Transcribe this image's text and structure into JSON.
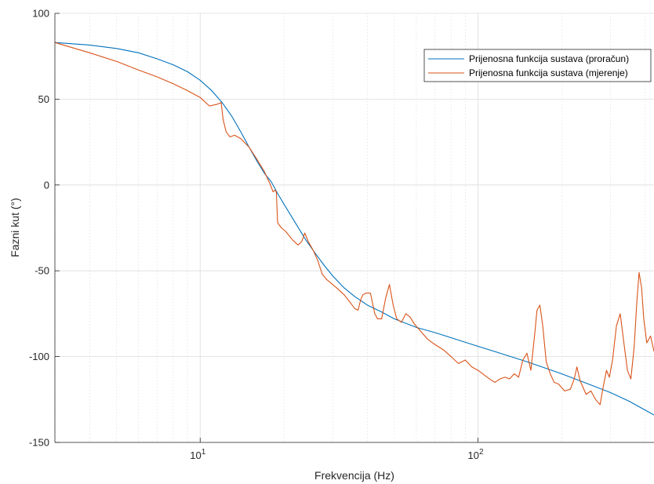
{
  "chart_data": {
    "type": "line",
    "title": "",
    "xlabel": "Frekvencija (Hz)",
    "ylabel": "Fazni kut (°)",
    "x_scale": "log",
    "xlim": [
      3,
      430
    ],
    "ylim": [
      -150,
      100
    ],
    "grid": true,
    "legend_position": "top-right",
    "xticks": [
      {
        "value": 10,
        "base": "10",
        "exp": "1"
      },
      {
        "value": 100,
        "base": "10",
        "exp": "2"
      }
    ],
    "yticks": [
      {
        "value": -150,
        "label": "-150"
      },
      {
        "value": -100,
        "label": "-100"
      },
      {
        "value": -50,
        "label": "-50"
      },
      {
        "value": 0,
        "label": "0"
      },
      {
        "value": 50,
        "label": "50"
      },
      {
        "value": 100,
        "label": "100"
      }
    ],
    "series": [
      {
        "name": "Prijenosna funkcija sustava (proračun)",
        "color": "#0072BD",
        "points": [
          [
            3,
            83
          ],
          [
            4,
            81.5
          ],
          [
            5,
            79.5
          ],
          [
            6,
            77
          ],
          [
            7,
            73.5
          ],
          [
            8,
            70
          ],
          [
            9,
            66
          ],
          [
            10,
            61
          ],
          [
            11,
            55
          ],
          [
            12,
            48
          ],
          [
            13,
            40
          ],
          [
            14,
            31
          ],
          [
            15,
            22
          ],
          [
            16,
            14
          ],
          [
            17,
            7
          ],
          [
            18,
            2
          ],
          [
            19,
            -5
          ],
          [
            20,
            -11
          ],
          [
            22,
            -22
          ],
          [
            24,
            -32
          ],
          [
            26,
            -40
          ],
          [
            28,
            -47
          ],
          [
            30,
            -53
          ],
          [
            33,
            -60
          ],
          [
            36,
            -65
          ],
          [
            40,
            -70
          ],
          [
            45,
            -74
          ],
          [
            50,
            -78
          ],
          [
            60,
            -83
          ],
          [
            70,
            -86
          ],
          [
            80,
            -89
          ],
          [
            100,
            -94
          ],
          [
            120,
            -98
          ],
          [
            150,
            -103
          ],
          [
            200,
            -110
          ],
          [
            250,
            -116
          ],
          [
            300,
            -121
          ],
          [
            350,
            -126
          ],
          [
            430,
            -134
          ]
        ]
      },
      {
        "name": "Prijenosna funkcija sustava (mjerenje)",
        "color": "#D95319",
        "points": [
          [
            3,
            83
          ],
          [
            4,
            77
          ],
          [
            5,
            72
          ],
          [
            6,
            67
          ],
          [
            7,
            63
          ],
          [
            8,
            59
          ],
          [
            9,
            55
          ],
          [
            10,
            51
          ],
          [
            10.8,
            46
          ],
          [
            11.5,
            47
          ],
          [
            11.9,
            48
          ],
          [
            12.1,
            38
          ],
          [
            12.4,
            31
          ],
          [
            12.8,
            28
          ],
          [
            13.3,
            29
          ],
          [
            14,
            27
          ],
          [
            15,
            22
          ],
          [
            16,
            15
          ],
          [
            17,
            8
          ],
          [
            17.8,
            1
          ],
          [
            18.3,
            -4
          ],
          [
            18.6,
            -3
          ],
          [
            18.8,
            -4
          ],
          [
            19,
            -22
          ],
          [
            19.6,
            -25
          ],
          [
            20.3,
            -27
          ],
          [
            21.5,
            -32
          ],
          [
            22.5,
            -35
          ],
          [
            23.2,
            -33
          ],
          [
            23.8,
            -28
          ],
          [
            24.5,
            -33
          ],
          [
            25.5,
            -38
          ],
          [
            26.5,
            -44
          ],
          [
            27.5,
            -52
          ],
          [
            28.5,
            -55
          ],
          [
            29.5,
            -57
          ],
          [
            31,
            -60
          ],
          [
            33,
            -64
          ],
          [
            34.5,
            -68
          ],
          [
            36,
            -72
          ],
          [
            37,
            -73
          ],
          [
            37.8,
            -67
          ],
          [
            38.5,
            -64
          ],
          [
            39.5,
            -63
          ],
          [
            41,
            -63
          ],
          [
            42.5,
            -75
          ],
          [
            43.5,
            -78
          ],
          [
            45,
            -78
          ],
          [
            46.5,
            -66
          ],
          [
            48,
            -58
          ],
          [
            49.5,
            -70
          ],
          [
            51,
            -78
          ],
          [
            53,
            -80
          ],
          [
            55,
            -75
          ],
          [
            57,
            -77
          ],
          [
            59,
            -81
          ],
          [
            62,
            -85
          ],
          [
            66,
            -90
          ],
          [
            70,
            -93
          ],
          [
            75,
            -96
          ],
          [
            80,
            -100
          ],
          [
            85,
            -104
          ],
          [
            90,
            -102
          ],
          [
            95,
            -106
          ],
          [
            100,
            -108
          ],
          [
            110,
            -113
          ],
          [
            115,
            -115
          ],
          [
            120,
            -113
          ],
          [
            125,
            -112
          ],
          [
            130,
            -113
          ],
          [
            135,
            -110
          ],
          [
            140,
            -112
          ],
          [
            145,
            -102
          ],
          [
            150,
            -98
          ],
          [
            155,
            -108
          ],
          [
            160,
            -87
          ],
          [
            163,
            -73
          ],
          [
            167,
            -70
          ],
          [
            171,
            -82
          ],
          [
            176,
            -103
          ],
          [
            182,
            -110
          ],
          [
            188,
            -115
          ],
          [
            195,
            -116
          ],
          [
            205,
            -120
          ],
          [
            215,
            -119
          ],
          [
            222,
            -113
          ],
          [
            227,
            -106
          ],
          [
            233,
            -114
          ],
          [
            245,
            -122
          ],
          [
            255,
            -120
          ],
          [
            265,
            -125
          ],
          [
            275,
            -128
          ],
          [
            282,
            -118
          ],
          [
            290,
            -108
          ],
          [
            297,
            -112
          ],
          [
            305,
            -102
          ],
          [
            315,
            -82
          ],
          [
            325,
            -75
          ],
          [
            335,
            -92
          ],
          [
            345,
            -108
          ],
          [
            355,
            -113
          ],
          [
            365,
            -94
          ],
          [
            373,
            -68
          ],
          [
            380,
            -51
          ],
          [
            388,
            -60
          ],
          [
            395,
            -78
          ],
          [
            405,
            -92
          ],
          [
            418,
            -88
          ],
          [
            430,
            -97
          ]
        ]
      }
    ]
  }
}
